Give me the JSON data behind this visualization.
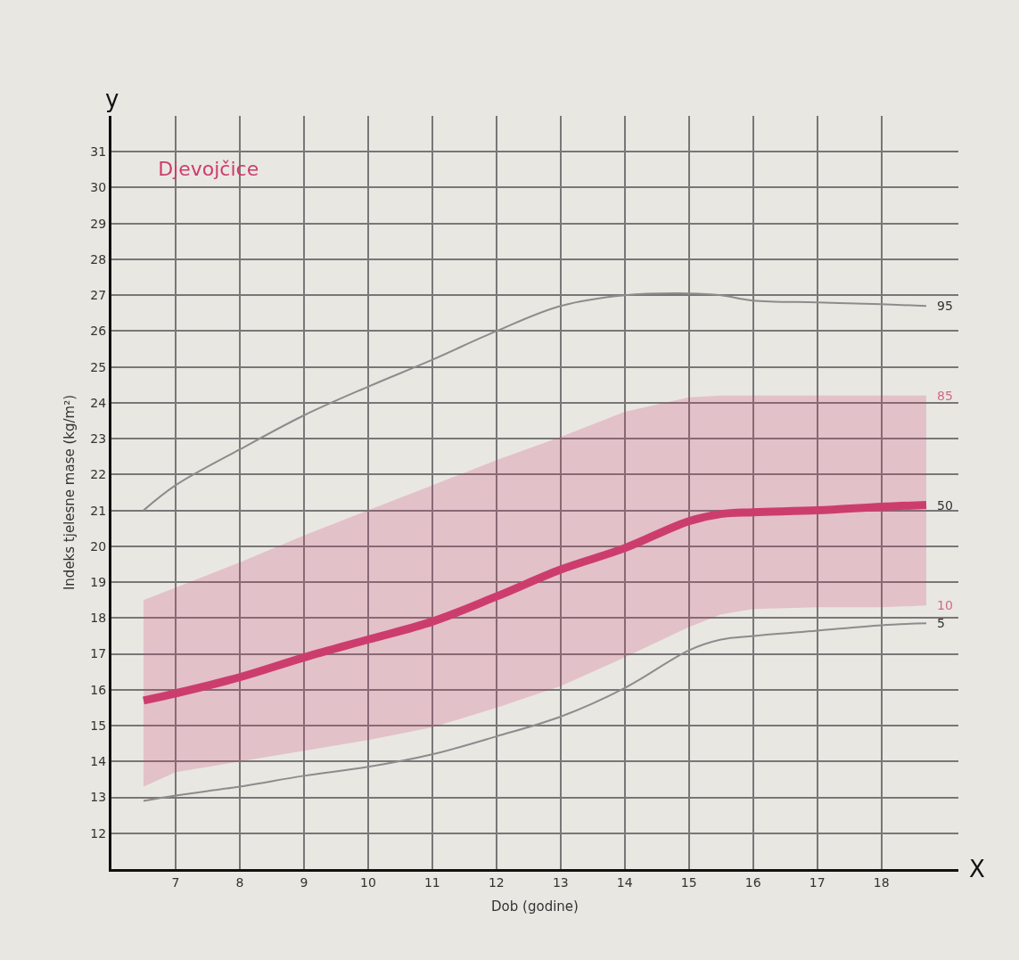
{
  "chart_data": {
    "type": "line",
    "title": "Djevojčice",
    "xlabel": "Dob (godine)",
    "ylabel": "Indeks tjelesne mase (kg/m²)",
    "x": [
      6.5,
      7,
      8,
      9,
      10,
      11,
      12,
      13,
      14,
      15,
      15.5,
      16,
      17,
      18,
      18.7
    ],
    "series": [
      {
        "name": "95",
        "color": "#8c8c8c",
        "values": [
          21.0,
          21.7,
          22.7,
          23.65,
          24.45,
          25.2,
          26.0,
          26.7,
          27.0,
          27.05,
          27.0,
          26.85,
          26.8,
          26.75,
          26.7
        ]
      },
      {
        "name": "50",
        "color": "#cc3d6e",
        "values": [
          15.7,
          15.9,
          16.35,
          16.9,
          17.4,
          17.9,
          18.6,
          19.35,
          19.95,
          20.7,
          20.9,
          20.95,
          21.0,
          21.1,
          21.15
        ],
        "lower": [
          13.3,
          13.7,
          14.0,
          14.3,
          14.6,
          14.95,
          15.5,
          16.1,
          16.9,
          17.75,
          18.1,
          18.25,
          18.3,
          18.3,
          18.35
        ],
        "upper": [
          18.5,
          18.85,
          19.55,
          20.3,
          21.0,
          21.7,
          22.4,
          23.05,
          23.75,
          24.15,
          24.2,
          24.2,
          24.2,
          24.2,
          24.2
        ]
      },
      {
        "name": "5",
        "color": "#8c8c8c",
        "values": [
          12.9,
          13.05,
          13.3,
          13.6,
          13.85,
          14.2,
          14.7,
          15.25,
          16.05,
          17.1,
          17.4,
          17.5,
          17.65,
          17.8,
          17.85
        ]
      }
    ],
    "annotations": [
      {
        "text": "85",
        "x": 18.7,
        "y": 24.2
      },
      {
        "text": "10",
        "x": 18.7,
        "y": 18.35
      },
      "X",
      "y"
    ],
    "xlim": [
      6,
      19.2
    ],
    "ylim": [
      11,
      32
    ],
    "xticks": [
      7,
      8,
      9,
      10,
      11,
      12,
      13,
      14,
      15,
      16,
      17,
      18
    ],
    "yticks": [
      12,
      13,
      14,
      15,
      16,
      17,
      18,
      19,
      20,
      21,
      22,
      23,
      24,
      25,
      26,
      27,
      28,
      29,
      30,
      31
    ],
    "grid": true,
    "legend": false
  }
}
